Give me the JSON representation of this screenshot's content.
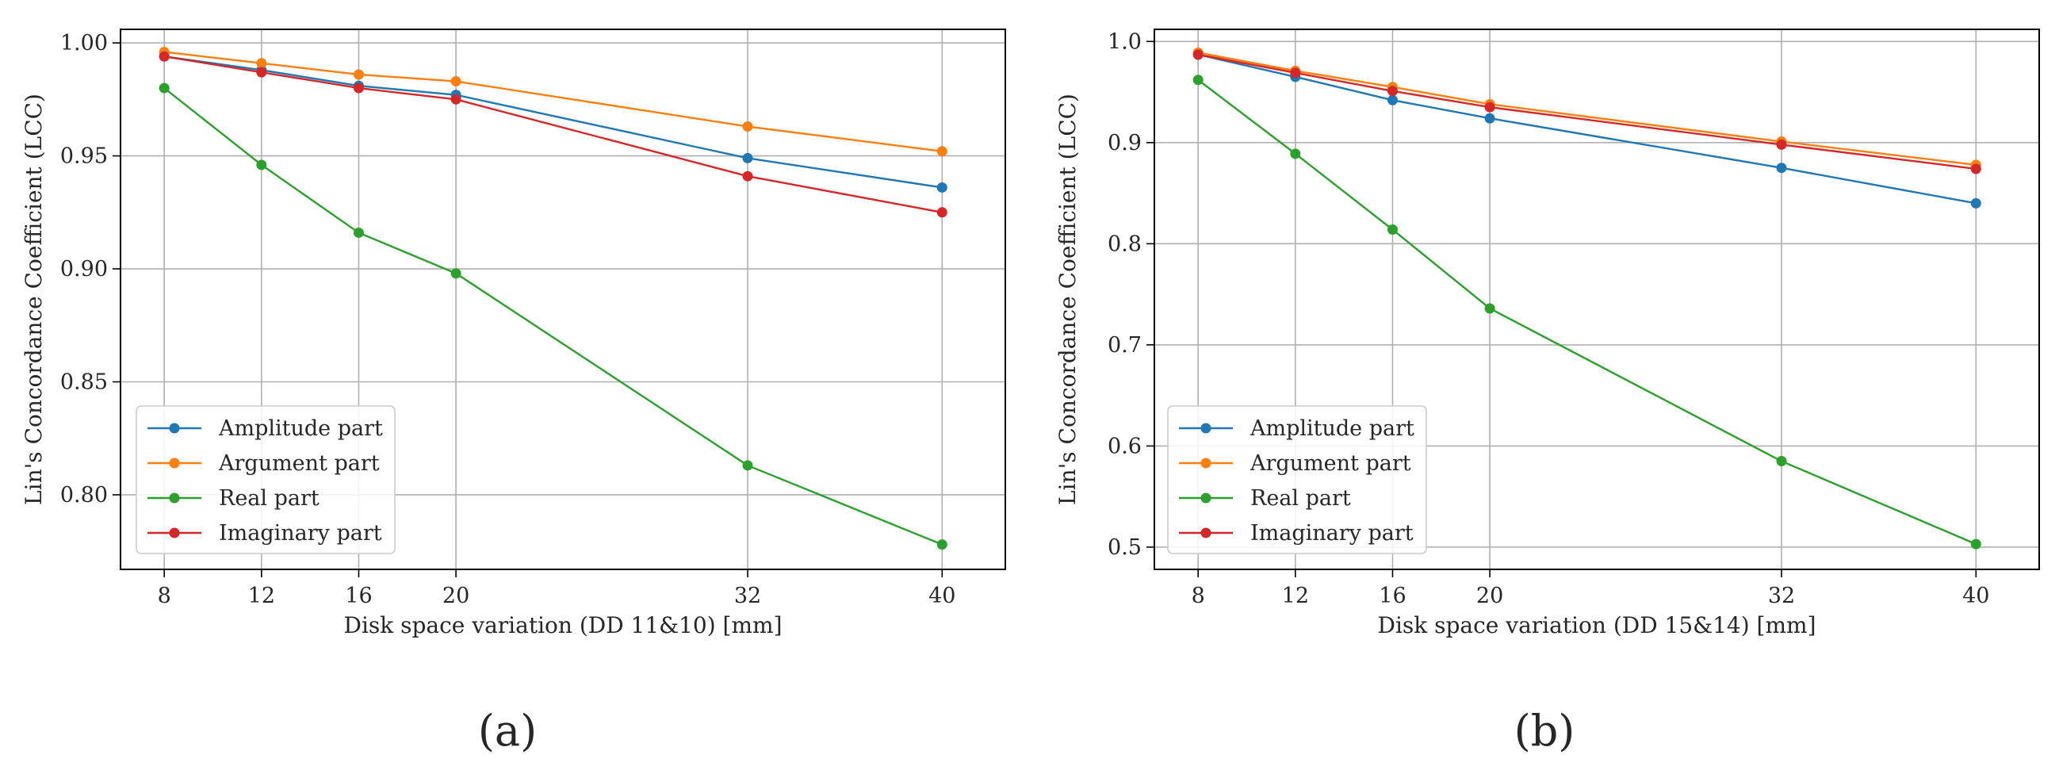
{
  "chart_data": [
    {
      "type": "line",
      "panel_label": "(a)",
      "xlabel": "Disk space variation (DD 11&10) [mm]",
      "ylabel": "Lin's Concordance Coefficient (LCC)",
      "x": [
        8,
        12,
        16,
        20,
        32,
        40
      ],
      "xlim": [
        6.2,
        42.6
      ],
      "ylim": [
        0.767,
        1.006
      ],
      "xticks": [
        8,
        12,
        16,
        20,
        32,
        40
      ],
      "yticks": [
        0.8,
        0.85,
        0.9,
        0.95,
        1.0
      ],
      "ytick_labels": [
        "0.80",
        "0.85",
        "0.90",
        "0.95",
        "1.00"
      ],
      "grid": true,
      "legend_position": "lower-left",
      "series": [
        {
          "name": "Amplitude part",
          "color": "#1f77b4",
          "values": [
            0.994,
            0.988,
            0.981,
            0.977,
            0.949,
            0.936
          ]
        },
        {
          "name": "Argument part",
          "color": "#ff7f0e",
          "values": [
            0.996,
            0.991,
            0.986,
            0.983,
            0.963,
            0.952
          ]
        },
        {
          "name": "Real part",
          "color": "#2ca02c",
          "values": [
            0.98,
            0.946,
            0.916,
            0.898,
            0.813,
            0.778
          ]
        },
        {
          "name": "Imaginary part",
          "color": "#d62728",
          "values": [
            0.994,
            0.987,
            0.98,
            0.975,
            0.941,
            0.925
          ]
        }
      ]
    },
    {
      "type": "line",
      "panel_label": "(b)",
      "xlabel": "Disk space variation (DD 15&14) [mm]",
      "ylabel": "Lin's Concordance Coefficient (LCC)",
      "x": [
        8,
        12,
        16,
        20,
        32,
        40
      ],
      "xlim": [
        6.2,
        42.6
      ],
      "ylim": [
        0.478,
        1.012
      ],
      "xticks": [
        8,
        12,
        16,
        20,
        32,
        40
      ],
      "yticks": [
        0.5,
        0.6,
        0.7,
        0.8,
        0.9,
        1.0
      ],
      "ytick_labels": [
        "0.5",
        "0.6",
        "0.7",
        "0.8",
        "0.9",
        "1.0"
      ],
      "grid": true,
      "legend_position": "lower-left",
      "series": [
        {
          "name": "Amplitude part",
          "color": "#1f77b4",
          "values": [
            0.987,
            0.965,
            0.942,
            0.924,
            0.875,
            0.84
          ]
        },
        {
          "name": "Argument part",
          "color": "#ff7f0e",
          "values": [
            0.989,
            0.971,
            0.955,
            0.938,
            0.901,
            0.878
          ]
        },
        {
          "name": "Real part",
          "color": "#2ca02c",
          "values": [
            0.962,
            0.889,
            0.814,
            0.736,
            0.585,
            0.503
          ]
        },
        {
          "name": "Imaginary part",
          "color": "#d62728",
          "values": [
            0.987,
            0.969,
            0.951,
            0.935,
            0.898,
            0.874
          ]
        }
      ]
    }
  ]
}
